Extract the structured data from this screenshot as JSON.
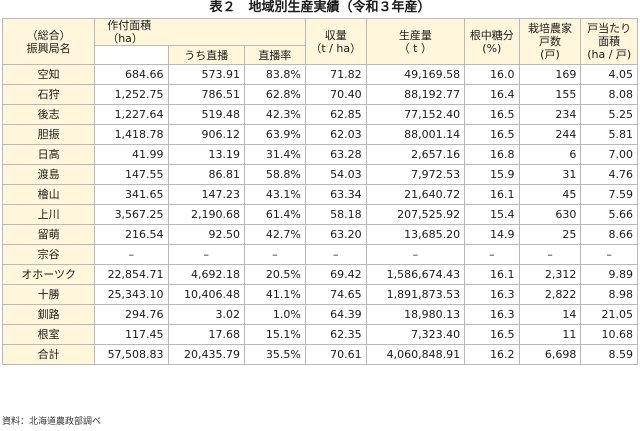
{
  "title": "表２　地域別生産実績（令和３年産）",
  "headers": {
    "region_l1": "（総合）",
    "region_l2": "振興局名",
    "area_l1": "作付面積",
    "area_l2": "（ha）",
    "direct_area": "うち直播",
    "direct_rate": "直播率",
    "yield_l1": "収量",
    "yield_l2": "（t / ha）",
    "production_l1": "生産量",
    "production_l2": "（ t ）",
    "sugar_l1": "根中糖分",
    "sugar_l2": "(%)",
    "farms_l1": "栽培農家",
    "farms_l2": "戸数",
    "farms_l3": "(戸)",
    "perfarm_l1": "戸当たり",
    "perfarm_l2": "面積",
    "perfarm_l3": "(ha / 戸)"
  },
  "rows": [
    {
      "region": "空知",
      "area": "684.66",
      "direct": "573.91",
      "rate": "83.8%",
      "yield": "71.82",
      "production": "49,169.58",
      "sugar": "16.0",
      "farms": "169",
      "per_farm": "4.05"
    },
    {
      "region": "石狩",
      "area": "1,252.75",
      "direct": "786.51",
      "rate": "62.8%",
      "yield": "70.40",
      "production": "88,192.77",
      "sugar": "16.4",
      "farms": "155",
      "per_farm": "8.08"
    },
    {
      "region": "後志",
      "area": "1,227.64",
      "direct": "519.48",
      "rate": "42.3%",
      "yield": "62.85",
      "production": "77,152.40",
      "sugar": "16.5",
      "farms": "234",
      "per_farm": "5.25"
    },
    {
      "region": "胆振",
      "area": "1,418.78",
      "direct": "906.12",
      "rate": "63.9%",
      "yield": "62.03",
      "production": "88,001.14",
      "sugar": "16.5",
      "farms": "244",
      "per_farm": "5.81"
    },
    {
      "region": "日高",
      "area": "41.99",
      "direct": "13.19",
      "rate": "31.4%",
      "yield": "63.28",
      "production": "2,657.16",
      "sugar": "16.8",
      "farms": "6",
      "per_farm": "7.00"
    },
    {
      "region": "渡島",
      "area": "147.55",
      "direct": "86.81",
      "rate": "58.8%",
      "yield": "54.03",
      "production": "7,972.53",
      "sugar": "15.9",
      "farms": "31",
      "per_farm": "4.76"
    },
    {
      "region": "檜山",
      "area": "341.65",
      "direct": "147.23",
      "rate": "43.1%",
      "yield": "63.34",
      "production": "21,640.72",
      "sugar": "16.1",
      "farms": "45",
      "per_farm": "7.59"
    },
    {
      "region": "上川",
      "area": "3,567.25",
      "direct": "2,190.68",
      "rate": "61.4%",
      "yield": "58.18",
      "production": "207,525.92",
      "sugar": "15.4",
      "farms": "630",
      "per_farm": "5.66"
    },
    {
      "region": "留萌",
      "area": "216.54",
      "direct": "92.50",
      "rate": "42.7%",
      "yield": "63.20",
      "production": "13,685.20",
      "sugar": "14.9",
      "farms": "25",
      "per_farm": "8.66"
    },
    {
      "region": "宗谷",
      "area": "–",
      "direct": "–",
      "rate": "–",
      "yield": "–",
      "production": "–",
      "sugar": "–",
      "farms": "–",
      "per_farm": "–"
    },
    {
      "region": "オホーツク",
      "area": "22,854.71",
      "direct": "4,692.18",
      "rate": "20.5%",
      "yield": "69.42",
      "production": "1,586,674.43",
      "sugar": "16.1",
      "farms": "2,312",
      "per_farm": "9.89"
    },
    {
      "region": "十勝",
      "area": "25,343.10",
      "direct": "10,406.48",
      "rate": "41.1%",
      "yield": "74.65",
      "production": "1,891,873.53",
      "sugar": "16.3",
      "farms": "2,822",
      "per_farm": "8.98"
    },
    {
      "region": "釧路",
      "area": "294.76",
      "direct": "3.02",
      "rate": "1.0%",
      "yield": "64.39",
      "production": "18,980.13",
      "sugar": "16.3",
      "farms": "14",
      "per_farm": "21.05"
    },
    {
      "region": "根室",
      "area": "117.45",
      "direct": "17.68",
      "rate": "15.1%",
      "yield": "62.35",
      "production": "7,323.40",
      "sugar": "16.5",
      "farms": "11",
      "per_farm": "10.68"
    },
    {
      "region": "合計",
      "area": "57,508.83",
      "direct": "20,435.79",
      "rate": "35.5%",
      "yield": "70.61",
      "production": "4,060,848.91",
      "sugar": "16.2",
      "farms": "6,698",
      "per_farm": "8.59"
    }
  ],
  "source": "資料：北海道農政部調べ"
}
